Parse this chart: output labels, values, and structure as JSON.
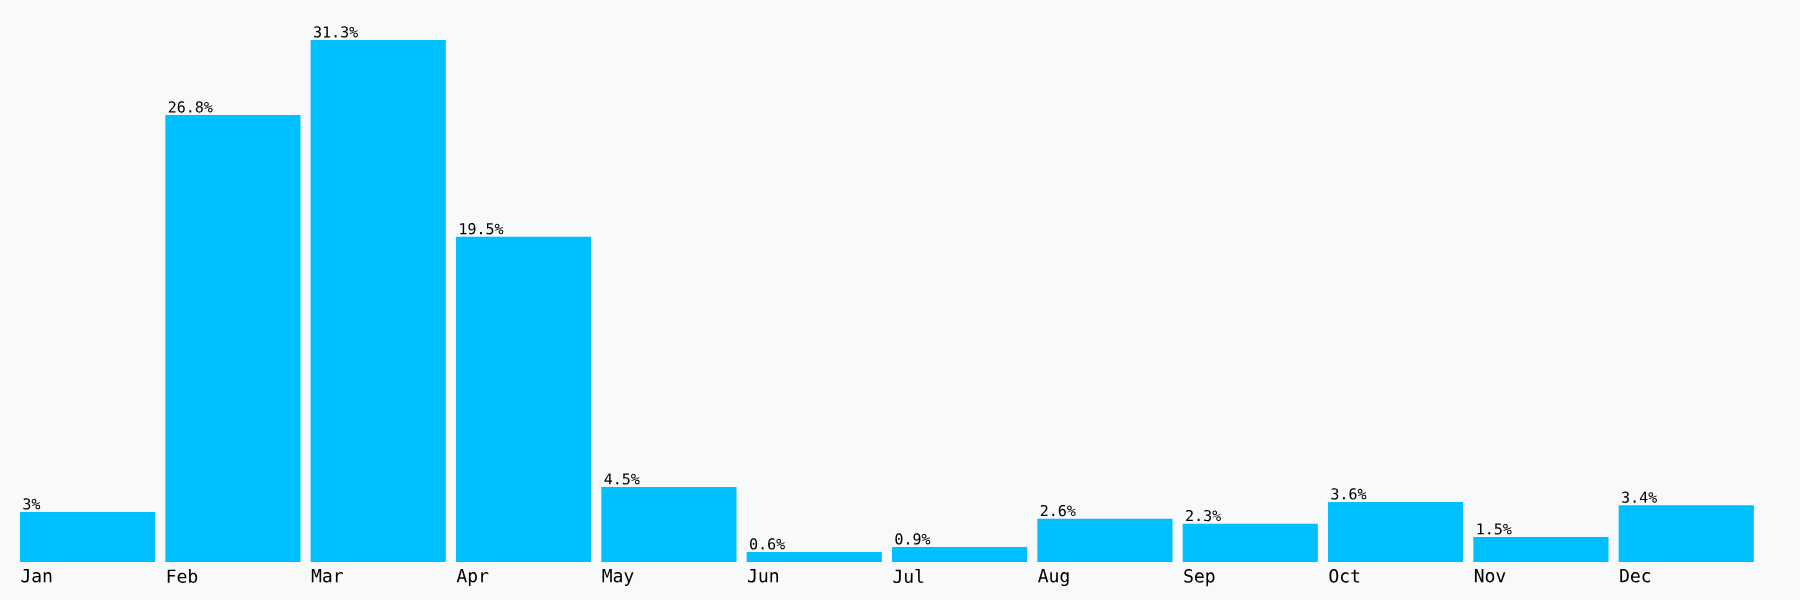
{
  "chart_data": {
    "type": "bar",
    "categories": [
      "Jan",
      "Feb",
      "Mar",
      "Apr",
      "May",
      "Jun",
      "Jul",
      "Aug",
      "Sep",
      "Oct",
      "Nov",
      "Dec"
    ],
    "values": [
      3,
      26.8,
      31.3,
      19.5,
      4.5,
      0.6,
      0.9,
      2.6,
      2.3,
      3.6,
      1.5,
      3.4
    ],
    "value_labels": [
      "3%",
      "26.8%",
      "31.3%",
      "19.5%",
      "4.5%",
      "0.6%",
      "0.9%",
      "2.6%",
      "2.3%",
      "3.6%",
      "1.5%",
      "3.4%"
    ],
    "color": "#00bfff",
    "tick_labels": "x"
  }
}
